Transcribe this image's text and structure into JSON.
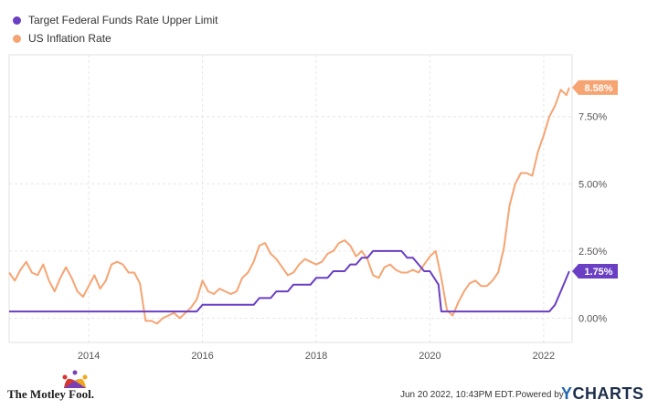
{
  "legend": [
    {
      "label": "Target Federal Funds Rate Upper Limit",
      "color": "#6a3fc4"
    },
    {
      "label": "US Inflation Rate",
      "color": "#f6a472"
    }
  ],
  "footer": {
    "logo_text": "The Motley Fool.",
    "timestamp": "Jun 20 2022, 10:43PM EDT.",
    "powered_by": "Powered by",
    "brand_prefix": "Y",
    "brand_suffix": "CHARTS"
  },
  "chart_data": {
    "type": "line",
    "x_ticks": [
      "2014",
      "2016",
      "2018",
      "2020",
      "2022"
    ],
    "y_ticks": [
      "0.00%",
      "2.50%",
      "5.00%",
      "7.50%"
    ],
    "xlim": [
      2012.6,
      2022.5
    ],
    "ylim": [
      -0.9,
      9.8
    ],
    "end_labels": [
      "8.58%",
      "1.75%"
    ],
    "series": [
      {
        "name": "Target Federal Funds Rate Upper Limit",
        "color": "#6a3fc4",
        "x": [
          2012.6,
          2015.9,
          2016.0,
          2016.9,
          2017.0,
          2017.2,
          2017.3,
          2017.5,
          2017.6,
          2017.9,
          2018.0,
          2018.2,
          2018.3,
          2018.5,
          2018.6,
          2018.7,
          2018.8,
          2018.9,
          2019.0,
          2019.5,
          2019.6,
          2019.7,
          2019.8,
          2019.9,
          2020.0,
          2020.15,
          2020.2,
          2022.0,
          2022.1,
          2022.2,
          2022.3,
          2022.45
        ],
        "y": [
          0.25,
          0.25,
          0.5,
          0.5,
          0.75,
          0.75,
          1.0,
          1.0,
          1.25,
          1.25,
          1.5,
          1.5,
          1.75,
          1.75,
          2.0,
          2.0,
          2.25,
          2.25,
          2.5,
          2.5,
          2.25,
          2.25,
          2.0,
          1.75,
          1.75,
          1.25,
          0.25,
          0.25,
          0.25,
          0.5,
          1.0,
          1.75
        ]
      },
      {
        "name": "US Inflation Rate",
        "color": "#f6a472",
        "x": [
          2012.6,
          2012.7,
          2012.8,
          2012.9,
          2013.0,
          2013.1,
          2013.2,
          2013.3,
          2013.4,
          2013.5,
          2013.6,
          2013.7,
          2013.8,
          2013.9,
          2014.0,
          2014.1,
          2014.2,
          2014.3,
          2014.4,
          2014.5,
          2014.6,
          2014.7,
          2014.8,
          2014.9,
          2015.0,
          2015.1,
          2015.2,
          2015.3,
          2015.4,
          2015.5,
          2015.6,
          2015.7,
          2015.8,
          2015.9,
          2016.0,
          2016.1,
          2016.2,
          2016.3,
          2016.4,
          2016.5,
          2016.6,
          2016.7,
          2016.8,
          2016.9,
          2017.0,
          2017.1,
          2017.2,
          2017.3,
          2017.4,
          2017.5,
          2017.6,
          2017.7,
          2017.8,
          2017.9,
          2018.0,
          2018.1,
          2018.2,
          2018.3,
          2018.4,
          2018.5,
          2018.6,
          2018.7,
          2018.8,
          2018.9,
          2019.0,
          2019.1,
          2019.2,
          2019.3,
          2019.4,
          2019.5,
          2019.6,
          2019.7,
          2019.8,
          2019.9,
          2020.0,
          2020.1,
          2020.2,
          2020.3,
          2020.4,
          2020.5,
          2020.6,
          2020.7,
          2020.8,
          2020.9,
          2021.0,
          2021.1,
          2021.2,
          2021.3,
          2021.4,
          2021.5,
          2021.6,
          2021.7,
          2021.8,
          2021.9,
          2022.0,
          2022.1,
          2022.2,
          2022.3,
          2022.4,
          2022.45
        ],
        "y": [
          1.7,
          1.4,
          1.8,
          2.1,
          1.7,
          1.6,
          2.0,
          1.4,
          1.0,
          1.5,
          1.9,
          1.5,
          1.0,
          0.8,
          1.2,
          1.6,
          1.1,
          1.4,
          2.0,
          2.1,
          2.0,
          1.7,
          1.7,
          1.3,
          -0.1,
          -0.1,
          -0.2,
          0.0,
          0.1,
          0.2,
          0.0,
          0.2,
          0.4,
          0.7,
          1.4,
          1.0,
          0.9,
          1.1,
          1.0,
          0.9,
          1.0,
          1.5,
          1.7,
          2.1,
          2.7,
          2.8,
          2.4,
          2.2,
          1.9,
          1.6,
          1.7,
          2.0,
          2.2,
          2.1,
          2.0,
          2.1,
          2.4,
          2.5,
          2.8,
          2.9,
          2.7,
          2.3,
          2.5,
          2.2,
          1.6,
          1.5,
          1.9,
          2.0,
          1.8,
          1.7,
          1.7,
          1.8,
          1.7,
          2.0,
          2.3,
          2.5,
          1.5,
          0.3,
          0.1,
          0.6,
          1.0,
          1.3,
          1.4,
          1.2,
          1.2,
          1.4,
          1.7,
          2.6,
          4.2,
          5.0,
          5.4,
          5.4,
          5.3,
          6.2,
          6.8,
          7.5,
          7.9,
          8.5,
          8.3,
          8.58
        ]
      }
    ]
  }
}
